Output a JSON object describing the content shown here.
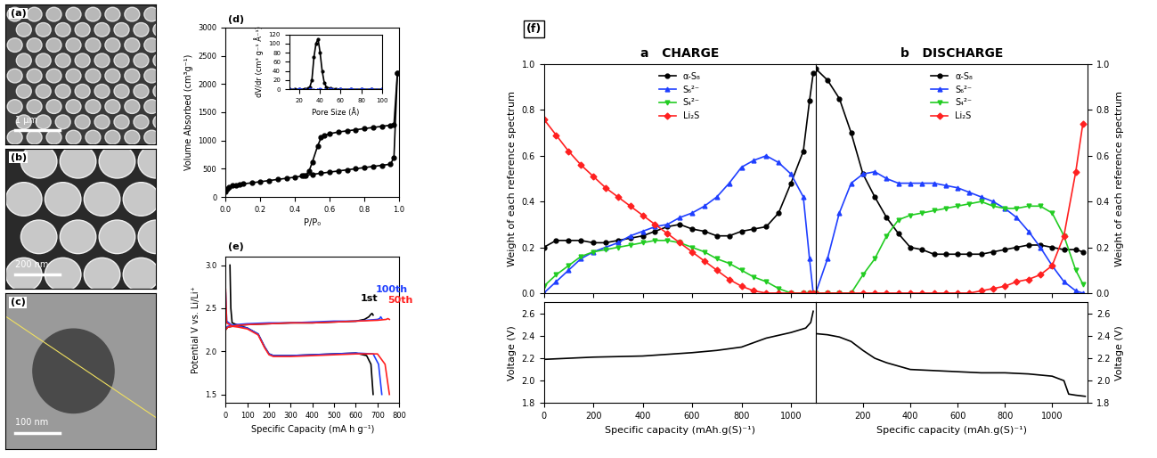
{
  "micrographs": [
    {
      "label": "(a)",
      "scale_bar": "1 µm"
    },
    {
      "label": "(b)",
      "scale_bar": "200 nm"
    },
    {
      "label": "(c)",
      "scale_bar": "100 nm"
    }
  ],
  "chart_data": [
    {
      "panel": "(d)",
      "type": "line",
      "x_label": "P/P₀",
      "y_label": "Volume Absorbed (cm³g⁻¹)",
      "xlim": [
        0,
        1
      ],
      "xticks": [
        {
          "value": 0,
          "label": "0.0"
        },
        0.2,
        0.4,
        0.6,
        0.8,
        {
          "value": 1,
          "label": "1.0"
        }
      ],
      "ylim": [
        0,
        3000
      ],
      "yticks": [
        0,
        500,
        1000,
        1500,
        2000,
        2500,
        3000
      ],
      "series": [
        {
          "color": "#000000",
          "marker": "circle",
          "line_style": "solid",
          "x": [
            0.0,
            0.01,
            0.02,
            0.04,
            0.06,
            0.08,
            0.1,
            0.15,
            0.2,
            0.25,
            0.3,
            0.35,
            0.4,
            0.45,
            0.5,
            0.55,
            0.6,
            0.65,
            0.7,
            0.75,
            0.8,
            0.85,
            0.9,
            0.95,
            0.97,
            0.99
          ],
          "values": [
            100,
            150,
            180,
            200,
            210,
            220,
            230,
            250,
            270,
            290,
            310,
            330,
            350,
            375,
            400,
            420,
            440,
            460,
            480,
            500,
            520,
            540,
            560,
            580,
            700,
            2200
          ]
        },
        {
          "color": "#000000",
          "marker": "circle",
          "line_style": "solid",
          "x": [
            0.99,
            0.97,
            0.95,
            0.9,
            0.85,
            0.8,
            0.75,
            0.7,
            0.65,
            0.6,
            0.57,
            0.55,
            0.53,
            0.5,
            0.48,
            0.46,
            0.44
          ],
          "values": [
            2200,
            1280,
            1270,
            1250,
            1230,
            1210,
            1190,
            1170,
            1150,
            1120,
            1090,
            1050,
            900,
            620,
            450,
            380,
            375
          ]
        }
      ],
      "inset": {
        "type": "line",
        "x_label": "Pore Size (Å)",
        "y_label": "dV/dr (cm³ g⁻¹ Å⁻¹)",
        "xlim": [
          10,
          100
        ],
        "xticks": [
          20,
          40,
          60,
          80,
          100
        ],
        "ylim": [
          0,
          120
        ],
        "yticks": [
          0,
          20,
          40,
          60,
          80,
          100,
          120
        ],
        "series": [
          {
            "color": "#000000",
            "marker": "circle",
            "line_style": "solid",
            "x": [
              10,
              15,
              20,
              25,
              28,
              30,
              32,
              34,
              36,
              38,
              40,
              42,
              44,
              46,
              50,
              55,
              60,
              70,
              80,
              90,
              100
            ],
            "values": [
              0,
              0,
              0,
              1,
              2,
              5,
              20,
              70,
              100,
              110,
              80,
              40,
              15,
              5,
              2,
              1,
              0,
              0,
              0,
              0,
              0
            ]
          },
          {
            "color": "#1f3fff",
            "marker": "circle",
            "line_style": "dotted",
            "x": [
              10,
              20,
              30,
              40,
              50,
              60,
              70,
              80,
              90,
              100
            ],
            "values": [
              1,
              1,
              1,
              1,
              1,
              1,
              1,
              1,
              1,
              1
            ]
          }
        ]
      }
    },
    {
      "panel": "(e)",
      "type": "line",
      "x_label": "Specific Capacity (mA h g⁻¹)",
      "y_label": "Potential V vs. Li/Li⁺",
      "xlim": [
        0,
        800
      ],
      "xticks": [
        0,
        100,
        200,
        300,
        400,
        500,
        600,
        700,
        800
      ],
      "ylim": [
        1.4,
        3.1
      ],
      "yticks": [
        1.5,
        2.0,
        2.5,
        3.0
      ],
      "series": [
        {
          "color": "#000000",
          "x": [
            20,
            24,
            30,
            60,
            100,
            150,
            180,
            200,
            220,
            300,
            400,
            500,
            600,
            650,
            670,
            680
          ],
          "values": [
            3.0,
            2.5,
            2.33,
            2.3,
            2.27,
            2.2,
            2.05,
            1.97,
            1.95,
            1.95,
            1.96,
            1.97,
            1.98,
            1.95,
            1.85,
            1.5
          ]
        },
        {
          "color": "#000000",
          "x": [
            0,
            10,
            50,
            100,
            200,
            300,
            400,
            500,
            600,
            640,
            660,
            670,
            675,
            680
          ],
          "values": [
            2.25,
            2.28,
            2.3,
            2.31,
            2.32,
            2.33,
            2.33,
            2.34,
            2.35,
            2.37,
            2.4,
            2.43,
            2.44,
            2.42
          ]
        },
        {
          "color": "#1f3fff",
          "x": [
            0,
            5,
            30,
            60,
            100,
            150,
            180,
            200,
            220,
            300,
            400,
            500,
            600,
            680,
            705,
            720
          ],
          "values": [
            2.68,
            2.35,
            2.3,
            2.29,
            2.27,
            2.2,
            2.05,
            1.97,
            1.95,
            1.95,
            1.96,
            1.97,
            1.98,
            1.97,
            1.85,
            1.5
          ]
        },
        {
          "color": "#1f3fff",
          "x": [
            0,
            10,
            50,
            100,
            200,
            300,
            400,
            500,
            600,
            700,
            710,
            715,
            720
          ],
          "values": [
            2.27,
            2.29,
            2.31,
            2.32,
            2.33,
            2.33,
            2.34,
            2.35,
            2.35,
            2.37,
            2.38,
            2.4,
            2.38
          ]
        },
        {
          "color": "#ff2020",
          "x": [
            0,
            5,
            30,
            60,
            100,
            150,
            180,
            200,
            220,
            300,
            400,
            500,
            600,
            700,
            735,
            755
          ],
          "values": [
            2.72,
            2.33,
            2.29,
            2.28,
            2.26,
            2.19,
            2.04,
            1.96,
            1.94,
            1.94,
            1.95,
            1.96,
            1.97,
            1.97,
            1.85,
            1.5
          ]
        },
        {
          "color": "#ff2020",
          "x": [
            0,
            10,
            50,
            100,
            200,
            300,
            400,
            500,
            600,
            700,
            740,
            748,
            755
          ],
          "values": [
            2.25,
            2.28,
            2.3,
            2.31,
            2.32,
            2.33,
            2.33,
            2.34,
            2.35,
            2.36,
            2.37,
            2.38,
            2.37
          ]
        }
      ],
      "annotations": [
        {
          "text": "1st",
          "x": 620,
          "y": 2.58,
          "color": "#000000"
        },
        {
          "text": "100th",
          "x": 690,
          "y": 2.68,
          "color": "#1f3fff"
        },
        {
          "text": "50th",
          "x": 745,
          "y": 2.56,
          "color": "#ff2020"
        }
      ]
    },
    {
      "panel": "(f)",
      "type": "line",
      "title": "a   CHARGE",
      "y_label": "Weight of each reference spectrum",
      "tick_labels": "y",
      "legend": "upper center",
      "x": [
        0,
        50,
        100,
        150,
        200,
        250,
        300,
        350,
        400,
        450,
        500,
        550,
        600,
        650,
        700,
        750,
        800,
        850,
        900,
        950,
        1000,
        1050,
        1075,
        1090
      ],
      "xlim": [
        0,
        1100
      ],
      "xticks": [
        0,
        200,
        400,
        600,
        800,
        1000
      ],
      "ylim": [
        0,
        1
      ],
      "yticks": [
        {
          "value": 0,
          "label": "0.0"
        },
        0.2,
        0.4,
        0.6,
        0.8,
        {
          "value": 1,
          "label": "1.0"
        }
      ],
      "series": [
        {
          "name": "α-S₈",
          "color": "#000000",
          "marker": "circle",
          "values": [
            0.2,
            0.23,
            0.23,
            0.23,
            0.22,
            0.22,
            0.23,
            0.24,
            0.25,
            0.27,
            0.29,
            0.3,
            0.28,
            0.27,
            0.25,
            0.25,
            0.27,
            0.28,
            0.29,
            0.35,
            0.48,
            0.62,
            0.84,
            0.96
          ]
        },
        {
          "name": "S₆²⁻",
          "color": "#1f3fff",
          "marker": "triangle_up",
          "values": [
            0,
            0.05,
            0.1,
            0.15,
            0.18,
            0.2,
            0.22,
            0.25,
            0.27,
            0.29,
            0.3,
            0.33,
            0.35,
            0.38,
            0.42,
            0.48,
            0.55,
            0.58,
            0.6,
            0.57,
            0.52,
            0.42,
            0.15,
            0
          ]
        },
        {
          "name": "S₄²⁻",
          "color": "#22cc22",
          "marker": "triangle_down",
          "values": [
            0.03,
            0.08,
            0.12,
            0.16,
            0.18,
            0.19,
            0.2,
            0.21,
            0.22,
            0.23,
            0.23,
            0.22,
            0.2,
            0.18,
            0.15,
            0.13,
            0.1,
            0.07,
            0.05,
            0.02,
            0,
            0,
            0,
            0
          ]
        },
        {
          "name": "Li₂S",
          "color": "#ff2020",
          "marker": "diamond",
          "values": [
            0.76,
            0.69,
            0.62,
            0.56,
            0.51,
            0.46,
            0.42,
            0.38,
            0.34,
            0.3,
            0.26,
            0.22,
            0.18,
            0.14,
            0.1,
            0.06,
            0.03,
            0.01,
            0,
            0,
            0,
            0,
            0,
            0
          ]
        }
      ]
    },
    {
      "type": "line",
      "title": "b   DISCHARGE",
      "y_label": "Weight of each reference spectrum",
      "tick_labels": "y",
      "legend": "upper center",
      "x": [
        0,
        50,
        100,
        150,
        200,
        250,
        300,
        350,
        400,
        450,
        500,
        550,
        600,
        650,
        700,
        750,
        800,
        850,
        900,
        950,
        1000,
        1050,
        1100,
        1130
      ],
      "xlim": [
        0,
        1150
      ],
      "xticks": [
        200,
        400,
        600,
        800,
        1000
      ],
      "ylim": [
        0,
        1
      ],
      "yticks": [
        {
          "value": 0,
          "label": "0.0"
        },
        0.2,
        0.4,
        0.6,
        0.8,
        {
          "value": 1,
          "label": "1.0"
        }
      ],
      "series": [
        {
          "name": "α-S₈",
          "color": "#000000",
          "marker": "circle",
          "values": [
            0.98,
            0.93,
            0.85,
            0.7,
            0.52,
            0.42,
            0.33,
            0.26,
            0.2,
            0.19,
            0.17,
            0.17,
            0.17,
            0.17,
            0.17,
            0.18,
            0.19,
            0.2,
            0.21,
            0.21,
            0.2,
            0.19,
            0.19,
            0.18
          ]
        },
        {
          "name": "S₆²⁻",
          "color": "#1f3fff",
          "marker": "triangle_up",
          "values": [
            0,
            0.15,
            0.35,
            0.48,
            0.52,
            0.53,
            0.5,
            0.48,
            0.48,
            0.48,
            0.48,
            0.47,
            0.46,
            0.44,
            0.42,
            0.4,
            0.37,
            0.33,
            0.27,
            0.2,
            0.12,
            0.05,
            0.01,
            0
          ]
        },
        {
          "name": "S₄²⁻",
          "color": "#22cc22",
          "marker": "triangle_down",
          "values": [
            0,
            0,
            0,
            0,
            0.08,
            0.15,
            0.25,
            0.32,
            0.34,
            0.35,
            0.36,
            0.37,
            0.38,
            0.39,
            0.4,
            0.38,
            0.37,
            0.37,
            0.38,
            0.38,
            0.35,
            0.25,
            0.1,
            0.04
          ]
        },
        {
          "name": "Li₂S",
          "color": "#ff2020",
          "marker": "diamond",
          "values": [
            0,
            0,
            0,
            0,
            0,
            0,
            0,
            0,
            0,
            0,
            0,
            0,
            0,
            0,
            0.01,
            0.02,
            0.03,
            0.05,
            0.06,
            0.08,
            0.12,
            0.25,
            0.53,
            0.74
          ]
        }
      ]
    },
    {
      "type": "line",
      "x_label": "Specific capacity (mAh.g(S)⁻¹)",
      "y_label": "Voltage (V)",
      "color": "#000000",
      "x": [
        0,
        100,
        200,
        300,
        400,
        500,
        600,
        700,
        800,
        900,
        1000,
        1060,
        1080,
        1090
      ],
      "values": [
        2.19,
        2.2,
        2.21,
        2.215,
        2.22,
        2.235,
        2.25,
        2.27,
        2.3,
        2.38,
        2.43,
        2.47,
        2.52,
        2.62
      ],
      "xlim": [
        0,
        1100
      ],
      "xticks": [
        0,
        200,
        400,
        600,
        800,
        1000
      ],
      "ylim": [
        1.8,
        2.7
      ],
      "yticks": [
        1.8,
        2.0,
        2.2,
        2.4,
        2.6
      ]
    },
    {
      "type": "line",
      "x_label": "Specific capacity (mAh.g(S)⁻¹)",
      "y_label": "Voltage (V)",
      "color": "#000000",
      "x": [
        0,
        50,
        100,
        150,
        200,
        250,
        300,
        400,
        500,
        600,
        700,
        800,
        900,
        1000,
        1050,
        1070,
        1100,
        1140
      ],
      "values": [
        2.42,
        2.41,
        2.39,
        2.35,
        2.27,
        2.2,
        2.16,
        2.1,
        2.09,
        2.08,
        2.07,
        2.07,
        2.06,
        2.04,
        2.0,
        1.88,
        1.87,
        1.86
      ],
      "xlim": [
        0,
        1150
      ],
      "xticks": [
        200,
        400,
        600,
        800,
        1000
      ],
      "ylim": [
        1.8,
        2.7
      ],
      "yticks": [
        1.8,
        2.0,
        2.2,
        2.4,
        2.6
      ]
    }
  ]
}
